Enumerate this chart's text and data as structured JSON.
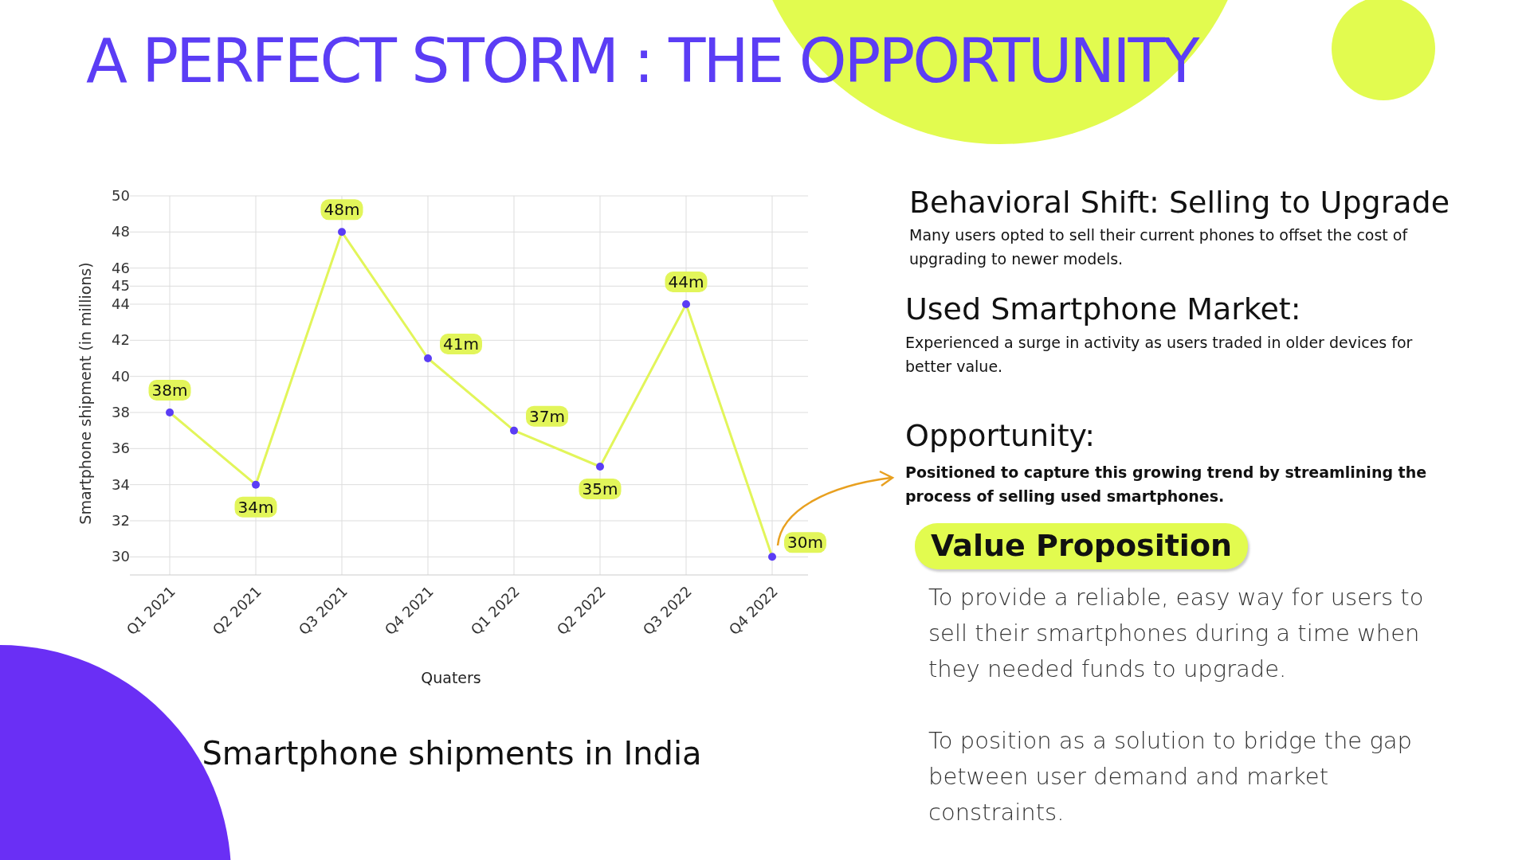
{
  "chart_data": [
    {
      "type": "line",
      "title": "Smartphone shipments in India",
      "xlabel": "Quaters",
      "ylabel": "Smartphone shipment (in millions)",
      "categories": [
        "Q1 2021",
        "Q2 2021",
        "Q3 2021",
        "Q4 2021",
        "Q1 2022",
        "Q2 2022",
        "Q3 2022",
        "Q4 2022"
      ],
      "series": [
        {
          "color": "#e2f55a",
          "values": [
            38,
            34,
            48,
            41,
            37,
            35,
            44,
            30
          ],
          "value_labels": [
            "38m",
            "34m",
            "48m",
            "41m",
            "37m",
            "35m",
            "44m",
            "30m"
          ]
        }
      ],
      "ylim": [
        29,
        50
      ],
      "yticks": [
        30,
        32,
        34,
        36,
        38,
        40,
        42,
        44,
        45,
        46,
        48,
        50
      ],
      "grid": true,
      "marker": "circle"
    },
    {
      "type": "other",
      "title": "A PERFECT STORM : THE OPPORTUNITY",
      "annotations": [
        "Behavioral Shift: Selling to Upgrade",
        "Many users opted to sell their current phones to offset the cost of upgrading to newer models.",
        "Used Smartphone Market:",
        "Experienced a surge in activity as users traded in older devices for better value.",
        "Opportunity:",
        "Positioned to capture this growing trend by streamlining the process of selling used smartphones.",
        "Value Proposition",
        "To provide a reliable, easy way for users to sell their smartphones during a time when they needed funds to upgrade.",
        "To position as a solution to bridge the gap between user demand and market constraints."
      ]
    }
  ]
}
